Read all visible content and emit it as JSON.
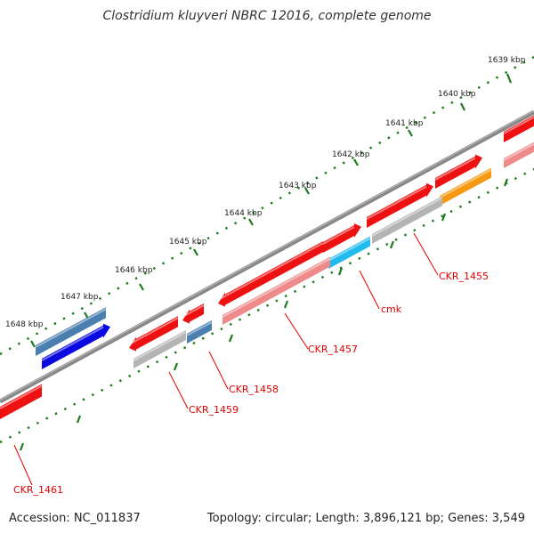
{
  "title": "Clostridium kluyveri NBRC 12016, complete genome",
  "accession": "Accession: NC_011837",
  "summary": "Topology: circular; Length: 3,896,121 bp; Genes: 3,549",
  "colors": {
    "backbone": "#777777",
    "ticks": "#1b7a1b",
    "label": "#e00000",
    "cds_red": "#ee1111",
    "cds_pink": "#ee8a8a",
    "cds_gray": "#b4b4b4",
    "cds_steel": "#4a7fb0",
    "cds_blue": "#0a0ae0",
    "cds_cyan": "#22bbee",
    "cds_orange": "#f59a10"
  },
  "ticks": [
    {
      "label": "1639 kbp"
    },
    {
      "label": "1640 kbp"
    },
    {
      "label": "1641 kbp"
    },
    {
      "label": "1642 kbp"
    },
    {
      "label": "1643 kbp"
    },
    {
      "label": "1644 kbp"
    },
    {
      "label": "1645 kbp"
    },
    {
      "label": "1646 kbp"
    },
    {
      "label": "1647 kbp"
    },
    {
      "label": "1648 kbp"
    }
  ],
  "gene_labels": [
    {
      "label": "CKR_1455"
    },
    {
      "label": "cmk"
    },
    {
      "label": "CKR_1457"
    },
    {
      "label": "CKR_1458"
    },
    {
      "label": "CKR_1459"
    },
    {
      "label": "CKR_1461"
    }
  ]
}
